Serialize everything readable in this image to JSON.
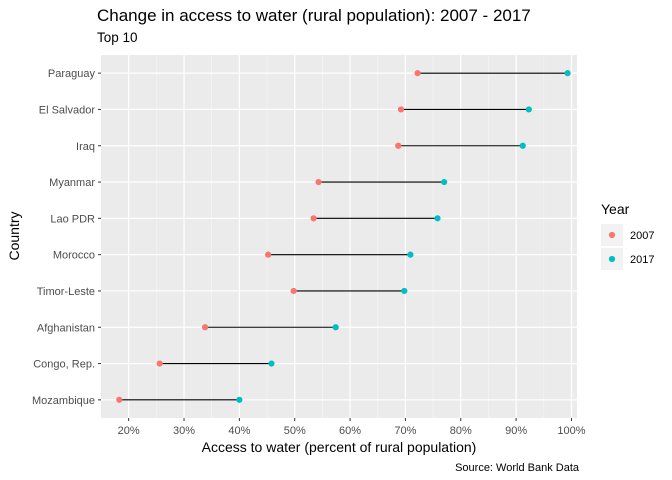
{
  "chart_data": {
    "type": "dumbbell",
    "title": "Change in access to water (rural population): 2007 - 2017",
    "subtitle": "Top 10",
    "xlabel": "Access to water (percent of rural population)",
    "ylabel": "Country",
    "caption": "Source: World Bank Data",
    "xlim": [
      15,
      101
    ],
    "x_ticks": [
      20,
      30,
      40,
      50,
      60,
      70,
      80,
      90,
      100
    ],
    "x_tick_labels": [
      "20%",
      "30%",
      "40%",
      "50%",
      "60%",
      "70%",
      "80%",
      "90%",
      "100%"
    ],
    "categories": [
      "Paraguay",
      "El Salvador",
      "Iraq",
      "Myanmar",
      "Lao PDR",
      "Morocco",
      "Timor-Leste",
      "Afghanistan",
      "Congo, Rep.",
      "Mozambique"
    ],
    "series": [
      {
        "name": "2007",
        "color": "#F8766D",
        "values": [
          72.2,
          69.2,
          68.7,
          54.3,
          53.4,
          45.2,
          49.8,
          33.8,
          25.6,
          18.3
        ]
      },
      {
        "name": "2017",
        "color": "#00BFC4",
        "values": [
          99.3,
          92.3,
          91.2,
          77.0,
          75.8,
          70.9,
          69.8,
          57.4,
          45.8,
          40.0
        ]
      }
    ],
    "legend": {
      "title": "Year",
      "position": "right"
    },
    "grid": true
  }
}
